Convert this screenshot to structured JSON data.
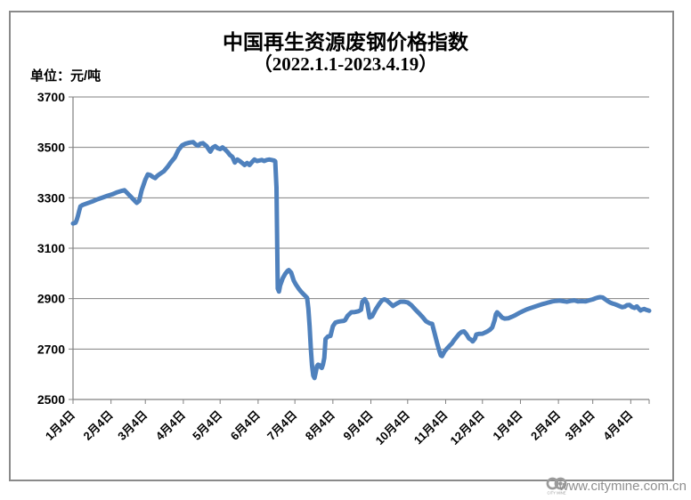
{
  "header": {
    "title_line1": "中国再生资源废钢价格指数",
    "title_line2": "（2022.1.1-2023.4.19）",
    "unit_label": "单位：元/吨"
  },
  "footer": {
    "url": "www.citymine.com.cn",
    "logo_text": "CITY MINE"
  },
  "colors": {
    "line": "#4F81BD",
    "grid": "#808080",
    "axis": "#808080",
    "frame": "#8A8A8A",
    "text": "#000000",
    "url_text": "#8F8F8F"
  },
  "chart_data": {
    "type": "line",
    "title": "中国再生资源废钢价格指数",
    "subtitle": "（2022.1.1-2023.4.19）",
    "unit_label": "单位：元/吨",
    "ylabel": "元/吨",
    "ylim": [
      2500,
      3700
    ],
    "yticks": [
      3700,
      3500,
      3300,
      3100,
      2900,
      2700,
      2500
    ],
    "xtick_labels": [
      "1月4日",
      "2月4日",
      "3月4日",
      "4月4日",
      "5月4日",
      "6月4日",
      "7月4日",
      "8月4日",
      "9月4日",
      "10月4日",
      "11月4日",
      "12月4日",
      "1月4日",
      "2月4日",
      "3月4日",
      "4月4日"
    ],
    "xtick_days": [
      0,
      31,
      59,
      90,
      120,
      151,
      181,
      212,
      243,
      273,
      304,
      334,
      365,
      396,
      424,
      455
    ],
    "x_total_days": 470,
    "grid": true,
    "legend_position": "none",
    "line_color": "#4F81BD",
    "series": [
      {
        "name": "废钢价格指数",
        "x_unit": "days_since_2022-01-04",
        "points": [
          [
            0,
            3198
          ],
          [
            2,
            3201
          ],
          [
            3,
            3212
          ],
          [
            4,
            3228
          ],
          [
            5,
            3248
          ],
          [
            6,
            3266
          ],
          [
            8,
            3272
          ],
          [
            12,
            3279
          ],
          [
            16,
            3286
          ],
          [
            20,
            3294
          ],
          [
            24,
            3301
          ],
          [
            28,
            3308
          ],
          [
            32,
            3314
          ],
          [
            36,
            3322
          ],
          [
            40,
            3328
          ],
          [
            42,
            3330
          ],
          [
            44,
            3320
          ],
          [
            47,
            3305
          ],
          [
            50,
            3290
          ],
          [
            52,
            3280
          ],
          [
            54,
            3288
          ],
          [
            56,
            3330
          ],
          [
            59,
            3372
          ],
          [
            61,
            3393
          ],
          [
            63,
            3390
          ],
          [
            65,
            3383
          ],
          [
            67,
            3378
          ],
          [
            69,
            3388
          ],
          [
            71,
            3395
          ],
          [
            74,
            3405
          ],
          [
            77,
            3422
          ],
          [
            80,
            3442
          ],
          [
            83,
            3460
          ],
          [
            86,
            3490
          ],
          [
            89,
            3508
          ],
          [
            92,
            3515
          ],
          [
            95,
            3519
          ],
          [
            98,
            3521
          ],
          [
            100,
            3512
          ],
          [
            102,
            3507
          ],
          [
            104,
            3515
          ],
          [
            106,
            3517
          ],
          [
            109,
            3505
          ],
          [
            111,
            3490
          ],
          [
            112,
            3483
          ],
          [
            114,
            3499
          ],
          [
            116,
            3505
          ],
          [
            118,
            3497
          ],
          [
            120,
            3493
          ],
          [
            122,
            3500
          ],
          [
            124,
            3492
          ],
          [
            126,
            3482
          ],
          [
            128,
            3470
          ],
          [
            130,
            3462
          ],
          [
            132,
            3440
          ],
          [
            134,
            3452
          ],
          [
            136,
            3446
          ],
          [
            138,
            3438
          ],
          [
            140,
            3430
          ],
          [
            142,
            3438
          ],
          [
            144,
            3430
          ],
          [
            146,
            3442
          ],
          [
            148,
            3452
          ],
          [
            150,
            3446
          ],
          [
            152,
            3448
          ],
          [
            154,
            3450
          ],
          [
            156,
            3446
          ],
          [
            158,
            3450
          ],
          [
            160,
            3452
          ],
          [
            162,
            3450
          ],
          [
            164,
            3448
          ],
          [
            165,
            3445
          ],
          [
            166,
            3340
          ],
          [
            167,
            2940
          ],
          [
            168,
            2928
          ],
          [
            169,
            2952
          ],
          [
            171,
            2980
          ],
          [
            173,
            2998
          ],
          [
            175,
            3010
          ],
          [
            176,
            3013
          ],
          [
            178,
            3003
          ],
          [
            180,
            2972
          ],
          [
            182,
            2955
          ],
          [
            184,
            2940
          ],
          [
            186,
            2928
          ],
          [
            188,
            2918
          ],
          [
            190,
            2908
          ],
          [
            191,
            2903
          ],
          [
            192,
            2860
          ],
          [
            193,
            2790
          ],
          [
            194,
            2700
          ],
          [
            195,
            2635
          ],
          [
            196,
            2595
          ],
          [
            197,
            2585
          ],
          [
            198,
            2608
          ],
          [
            199,
            2632
          ],
          [
            200,
            2638
          ],
          [
            201,
            2636
          ],
          [
            202,
            2628
          ],
          [
            203,
            2625
          ],
          [
            204,
            2640
          ],
          [
            205,
            2665
          ],
          [
            206,
            2740
          ],
          [
            208,
            2750
          ],
          [
            210,
            2752
          ],
          [
            212,
            2790
          ],
          [
            214,
            2805
          ],
          [
            216,
            2808
          ],
          [
            218,
            2810
          ],
          [
            221,
            2812
          ],
          [
            222,
            2815
          ],
          [
            224,
            2832
          ],
          [
            227,
            2846
          ],
          [
            230,
            2847
          ],
          [
            233,
            2850
          ],
          [
            235,
            2856
          ],
          [
            236,
            2888
          ],
          [
            238,
            2898
          ],
          [
            240,
            2880
          ],
          [
            242,
            2825
          ],
          [
            244,
            2830
          ],
          [
            247,
            2858
          ],
          [
            250,
            2880
          ],
          [
            252,
            2893
          ],
          [
            254,
            2897
          ],
          [
            256,
            2893
          ],
          [
            259,
            2880
          ],
          [
            261,
            2871
          ],
          [
            264,
            2880
          ],
          [
            267,
            2888
          ],
          [
            270,
            2888
          ],
          [
            273,
            2885
          ],
          [
            276,
            2874
          ],
          [
            279,
            2858
          ],
          [
            282,
            2843
          ],
          [
            285,
            2828
          ],
          [
            288,
            2810
          ],
          [
            291,
            2802
          ],
          [
            293,
            2800
          ],
          [
            295,
            2762
          ],
          [
            297,
            2725
          ],
          [
            299,
            2690
          ],
          [
            300,
            2675
          ],
          [
            301,
            2672
          ],
          [
            303,
            2690
          ],
          [
            305,
            2702
          ],
          [
            307,
            2712
          ],
          [
            309,
            2722
          ],
          [
            311,
            2736
          ],
          [
            313,
            2748
          ],
          [
            315,
            2760
          ],
          [
            317,
            2768
          ],
          [
            319,
            2770
          ],
          [
            321,
            2758
          ],
          [
            323,
            2742
          ],
          [
            325,
            2736
          ],
          [
            326,
            2730
          ],
          [
            328,
            2742
          ],
          [
            329,
            2758
          ],
          [
            331,
            2760
          ],
          [
            334,
            2761
          ],
          [
            336,
            2765
          ],
          [
            338,
            2770
          ],
          [
            340,
            2776
          ],
          [
            342,
            2786
          ],
          [
            344,
            2815
          ],
          [
            345,
            2838
          ],
          [
            346,
            2846
          ],
          [
            348,
            2836
          ],
          [
            350,
            2825
          ],
          [
            352,
            2821
          ],
          [
            355,
            2822
          ],
          [
            358,
            2828
          ],
          [
            361,
            2835
          ],
          [
            364,
            2843
          ],
          [
            367,
            2850
          ],
          [
            370,
            2857
          ],
          [
            373,
            2862
          ],
          [
            376,
            2867
          ],
          [
            379,
            2872
          ],
          [
            382,
            2877
          ],
          [
            385,
            2881
          ],
          [
            388,
            2885
          ],
          [
            391,
            2889
          ],
          [
            394,
            2891
          ],
          [
            397,
            2892
          ],
          [
            400,
            2890
          ],
          [
            403,
            2888
          ],
          [
            406,
            2891
          ],
          [
            409,
            2893
          ],
          [
            412,
            2889
          ],
          [
            415,
            2890
          ],
          [
            418,
            2889
          ],
          [
            421,
            2893
          ],
          [
            424,
            2897
          ],
          [
            426,
            2901
          ],
          [
            428,
            2904
          ],
          [
            430,
            2906
          ],
          [
            432,
            2905
          ],
          [
            434,
            2898
          ],
          [
            436,
            2891
          ],
          [
            438,
            2885
          ],
          [
            440,
            2881
          ],
          [
            442,
            2878
          ],
          [
            444,
            2874
          ],
          [
            446,
            2870
          ],
          [
            448,
            2866
          ],
          [
            450,
            2868
          ],
          [
            452,
            2874
          ],
          [
            454,
            2875
          ],
          [
            456,
            2867
          ],
          [
            458,
            2863
          ],
          [
            460,
            2869
          ],
          [
            462,
            2858
          ],
          [
            463,
            2853
          ],
          [
            464,
            2856
          ],
          [
            466,
            2859
          ],
          [
            468,
            2855
          ],
          [
            470,
            2852
          ]
        ]
      }
    ]
  }
}
